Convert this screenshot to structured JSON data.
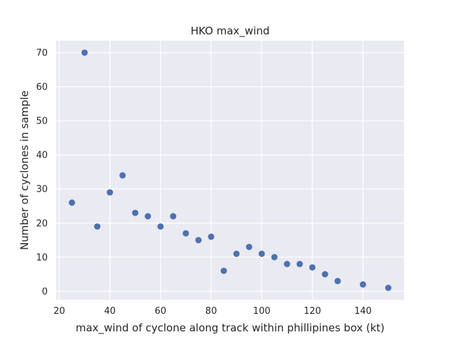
{
  "chart_data": {
    "type": "scatter",
    "title": "HKO max_wind",
    "xlabel": "max_wind of cyclone along track within phillipines box (kt)",
    "ylabel": "Number of cyclones in sample",
    "xlim": [
      18.75,
      156.25
    ],
    "ylim": [
      -2.5,
      73.5
    ],
    "xticks": [
      20,
      40,
      60,
      80,
      100,
      120,
      140
    ],
    "yticks": [
      0,
      10,
      20,
      30,
      40,
      50,
      60,
      70
    ],
    "grid": true,
    "colors": {
      "background": "#eaeaf2",
      "grid": "#ffffff",
      "marker": "#4c72b0"
    },
    "x": [
      25,
      30,
      35,
      40,
      45,
      50,
      55,
      60,
      65,
      70,
      75,
      80,
      85,
      90,
      95,
      100,
      105,
      110,
      115,
      120,
      125,
      130,
      140,
      150
    ],
    "y": [
      26,
      70,
      19,
      29,
      34,
      23,
      22,
      19,
      22,
      17,
      15,
      16,
      6,
      11,
      13,
      11,
      10,
      8,
      8,
      7,
      5,
      3,
      2,
      1
    ]
  }
}
